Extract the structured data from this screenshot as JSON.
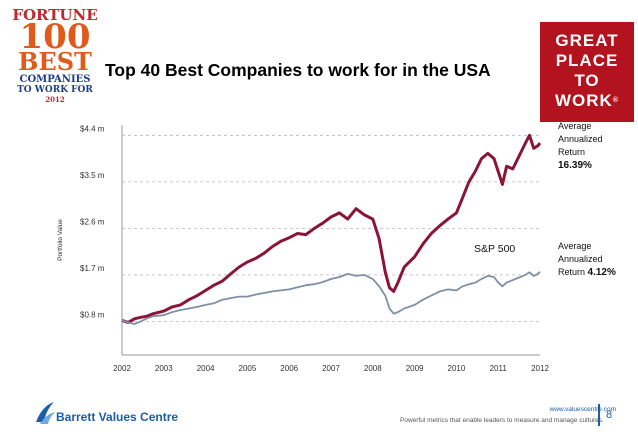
{
  "slide": {
    "title": "Top 40 Best Companies to work for in the USA",
    "page_number": "8",
    "footer_url": "www.valuescentre.com",
    "footer_tagline": "Powerful metrics that enable leaders to measure and manage cultures.",
    "brand": "Barrett Values Centre"
  },
  "logos": {
    "fortune": {
      "line1": "FORTUNE",
      "line2": "100",
      "line3": "BEST",
      "line4": "COMPANIES",
      "line5": "TO WORK FOR",
      "year": "2012"
    },
    "gptw": {
      "line1": "GREAT",
      "line2": "PLACE",
      "line3": "TO",
      "line4": "WORK",
      "mark": "®"
    }
  },
  "side_notes": {
    "best_companies": {
      "label1": "Average",
      "label2": "Annualized",
      "label3": "Return",
      "value": "16.39%"
    },
    "sp500": {
      "label1": "Average",
      "label2": "Annualized",
      "label3": "Return",
      "value": "4.12%"
    }
  },
  "colors": {
    "best_line": "#8a1538",
    "sp_line": "#7f8fa6",
    "brand_red": "#b3121f",
    "brand_blue": "#1a5ea8"
  },
  "chart_data": {
    "type": "line",
    "ylabel": "Portfolio Value",
    "yticks": [
      "$0.8 m",
      "$1.7 m",
      "$2.6 m",
      "$3.5 m",
      "$4.4 m"
    ],
    "ytick_values": [
      0.8,
      1.7,
      2.6,
      3.5,
      4.4
    ],
    "xticks": [
      "2002",
      "2003",
      "2004",
      "2005",
      "2006",
      "2007",
      "2008",
      "2009",
      "2010",
      "2011",
      "2012"
    ],
    "xtick_values": [
      2002,
      2003,
      2004,
      2005,
      2006,
      2007,
      2008,
      2009,
      2010,
      2011,
      2012
    ],
    "xlim": [
      2002,
      2012
    ],
    "ylim": [
      0.15,
      4.6
    ],
    "grid": "horizontal-dashed",
    "annotation": "S&P 500",
    "series": [
      {
        "name": "Best Companies",
        "points": [
          [
            2002.0,
            0.82
          ],
          [
            2002.15,
            0.78
          ],
          [
            2002.3,
            0.85
          ],
          [
            2002.45,
            0.88
          ],
          [
            2002.6,
            0.9
          ],
          [
            2002.75,
            0.95
          ],
          [
            2003.0,
            1.0
          ],
          [
            2003.2,
            1.08
          ],
          [
            2003.4,
            1.12
          ],
          [
            2003.6,
            1.22
          ],
          [
            2003.8,
            1.3
          ],
          [
            2004.0,
            1.4
          ],
          [
            2004.2,
            1.5
          ],
          [
            2004.4,
            1.58
          ],
          [
            2004.6,
            1.72
          ],
          [
            2004.8,
            1.85
          ],
          [
            2005.0,
            1.95
          ],
          [
            2005.2,
            2.02
          ],
          [
            2005.4,
            2.12
          ],
          [
            2005.6,
            2.25
          ],
          [
            2005.8,
            2.35
          ],
          [
            2006.0,
            2.42
          ],
          [
            2006.2,
            2.5
          ],
          [
            2006.4,
            2.48
          ],
          [
            2006.6,
            2.6
          ],
          [
            2006.8,
            2.7
          ],
          [
            2007.0,
            2.82
          ],
          [
            2007.2,
            2.9
          ],
          [
            2007.4,
            2.78
          ],
          [
            2007.6,
            2.98
          ],
          [
            2007.8,
            2.86
          ],
          [
            2008.0,
            2.78
          ],
          [
            2008.15,
            2.4
          ],
          [
            2008.3,
            1.75
          ],
          [
            2008.4,
            1.45
          ],
          [
            2008.5,
            1.38
          ],
          [
            2008.6,
            1.55
          ],
          [
            2008.75,
            1.85
          ],
          [
            2009.0,
            2.05
          ],
          [
            2009.2,
            2.3
          ],
          [
            2009.4,
            2.5
          ],
          [
            2009.6,
            2.65
          ],
          [
            2009.8,
            2.78
          ],
          [
            2010.0,
            2.9
          ],
          [
            2010.15,
            3.2
          ],
          [
            2010.3,
            3.5
          ],
          [
            2010.45,
            3.7
          ],
          [
            2010.6,
            3.95
          ],
          [
            2010.75,
            4.05
          ],
          [
            2010.9,
            3.95
          ],
          [
            2011.0,
            3.7
          ],
          [
            2011.1,
            3.45
          ],
          [
            2011.2,
            3.8
          ],
          [
            2011.35,
            3.75
          ],
          [
            2011.5,
            4.0
          ],
          [
            2011.65,
            4.25
          ],
          [
            2011.75,
            4.4
          ],
          [
            2011.85,
            4.15
          ],
          [
            2011.95,
            4.2
          ],
          [
            2012.0,
            4.25
          ]
        ]
      },
      {
        "name": "S&P 500",
        "points": [
          [
            2002.0,
            0.82
          ],
          [
            2002.15,
            0.78
          ],
          [
            2002.3,
            0.75
          ],
          [
            2002.45,
            0.8
          ],
          [
            2002.6,
            0.86
          ],
          [
            2002.75,
            0.9
          ],
          [
            2003.0,
            0.92
          ],
          [
            2003.2,
            0.98
          ],
          [
            2003.4,
            1.02
          ],
          [
            2003.6,
            1.05
          ],
          [
            2003.8,
            1.08
          ],
          [
            2004.0,
            1.12
          ],
          [
            2004.2,
            1.15
          ],
          [
            2004.4,
            1.22
          ],
          [
            2004.6,
            1.25
          ],
          [
            2004.8,
            1.28
          ],
          [
            2005.0,
            1.28
          ],
          [
            2005.2,
            1.32
          ],
          [
            2005.4,
            1.35
          ],
          [
            2005.6,
            1.38
          ],
          [
            2005.8,
            1.4
          ],
          [
            2006.0,
            1.42
          ],
          [
            2006.2,
            1.46
          ],
          [
            2006.4,
            1.5
          ],
          [
            2006.6,
            1.52
          ],
          [
            2006.8,
            1.56
          ],
          [
            2007.0,
            1.62
          ],
          [
            2007.2,
            1.66
          ],
          [
            2007.4,
            1.72
          ],
          [
            2007.6,
            1.68
          ],
          [
            2007.8,
            1.7
          ],
          [
            2008.0,
            1.62
          ],
          [
            2008.15,
            1.48
          ],
          [
            2008.3,
            1.3
          ],
          [
            2008.4,
            1.05
          ],
          [
            2008.5,
            0.95
          ],
          [
            2008.6,
            0.98
          ],
          [
            2008.75,
            1.05
          ],
          [
            2009.0,
            1.12
          ],
          [
            2009.2,
            1.22
          ],
          [
            2009.4,
            1.3
          ],
          [
            2009.6,
            1.38
          ],
          [
            2009.8,
            1.42
          ],
          [
            2010.0,
            1.4
          ],
          [
            2010.15,
            1.48
          ],
          [
            2010.3,
            1.52
          ],
          [
            2010.45,
            1.55
          ],
          [
            2010.6,
            1.62
          ],
          [
            2010.75,
            1.68
          ],
          [
            2010.9,
            1.66
          ],
          [
            2011.0,
            1.55
          ],
          [
            2011.1,
            1.48
          ],
          [
            2011.2,
            1.55
          ],
          [
            2011.35,
            1.6
          ],
          [
            2011.5,
            1.65
          ],
          [
            2011.65,
            1.7
          ],
          [
            2011.75,
            1.75
          ],
          [
            2011.85,
            1.68
          ],
          [
            2011.95,
            1.72
          ],
          [
            2012.0,
            1.76
          ]
        ]
      }
    ]
  }
}
